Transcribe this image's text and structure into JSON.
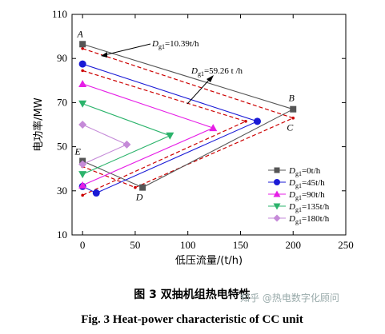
{
  "chart_data": {
    "type": "line",
    "xlabel": "低压流量/(t/h)",
    "ylabel": "电功率/MW",
    "xlim": [
      -10,
      250
    ],
    "ylim": [
      10,
      110
    ],
    "xticks": [
      0,
      50,
      100,
      150,
      200,
      250
    ],
    "yticks": [
      10,
      30,
      50,
      70,
      90,
      110
    ],
    "grid": false,
    "legend_position": "lower-right",
    "series": [
      {
        "name_main": "D",
        "name_sub": "g1",
        "name_rest": "=0t/h",
        "color": "#555555",
        "marker": "square",
        "points": [
          [
            0,
            96.5
          ],
          [
            200,
            67
          ],
          [
            57,
            31.5
          ],
          [
            0,
            43.5
          ]
        ]
      },
      {
        "name_main": "D",
        "name_sub": "g1",
        "name_rest": "=45t/h",
        "color": "#1a1ad6",
        "marker": "circle",
        "points": [
          [
            0,
            87.5
          ],
          [
            166,
            61.5
          ],
          [
            13,
            29
          ],
          [
            0,
            32
          ]
        ]
      },
      {
        "name_main": "D",
        "name_sub": "g1",
        "name_rest": "=90t/h",
        "color": "#e61ee6",
        "marker": "triangle-up",
        "points": [
          [
            0,
            78.5
          ],
          [
            124,
            58.5
          ],
          [
            0,
            32.5
          ]
        ]
      },
      {
        "name_main": "D",
        "name_sub": "g1",
        "name_rest": "=135t/h",
        "color": "#2bb36b",
        "marker": "triangle-down",
        "points": [
          [
            0,
            69.5
          ],
          [
            83,
            55
          ],
          [
            0,
            37.5
          ]
        ]
      },
      {
        "name_main": "D",
        "name_sub": "g1",
        "name_rest": "=180t/h",
        "color": "#c58ad8",
        "marker": "diamond",
        "points": [
          [
            0,
            60
          ],
          [
            42,
            51
          ],
          [
            0,
            42
          ]
        ]
      }
    ],
    "reference_boundary": {
      "style": "dashed",
      "color": "#cc0000",
      "outer": [
        [
          0,
          94.5
        ],
        [
          200,
          63
        ],
        [
          50,
          31.5
        ],
        [
          0,
          41
        ]
      ],
      "inner": [
        [
          0,
          84.5
        ],
        [
          155,
          61.5
        ],
        [
          0,
          28
        ]
      ]
    },
    "point_labels": [
      {
        "text": "A",
        "x": 0,
        "y": 96.5
      },
      {
        "text": "B",
        "x": 200,
        "y": 67
      },
      {
        "text": "C",
        "x": 200,
        "y": 63
      },
      {
        "text": "D",
        "x": 57,
        "y": 31.5
      },
      {
        "text": "E",
        "x": 0,
        "y": 43.5
      }
    ],
    "annotations": [
      {
        "main": "D",
        "sub": "g1",
        "rest": "=10.39t/h"
      },
      {
        "main": "D",
        "sub": "g1",
        "rest": "=59.26 t /h"
      }
    ]
  },
  "caption": {
    "cn": "图 3    双抽机组热电特性",
    "en": "Fig. 3    Heat-power characteristic of CC unit"
  },
  "watermark": "知乎 @热电数字化顾问"
}
